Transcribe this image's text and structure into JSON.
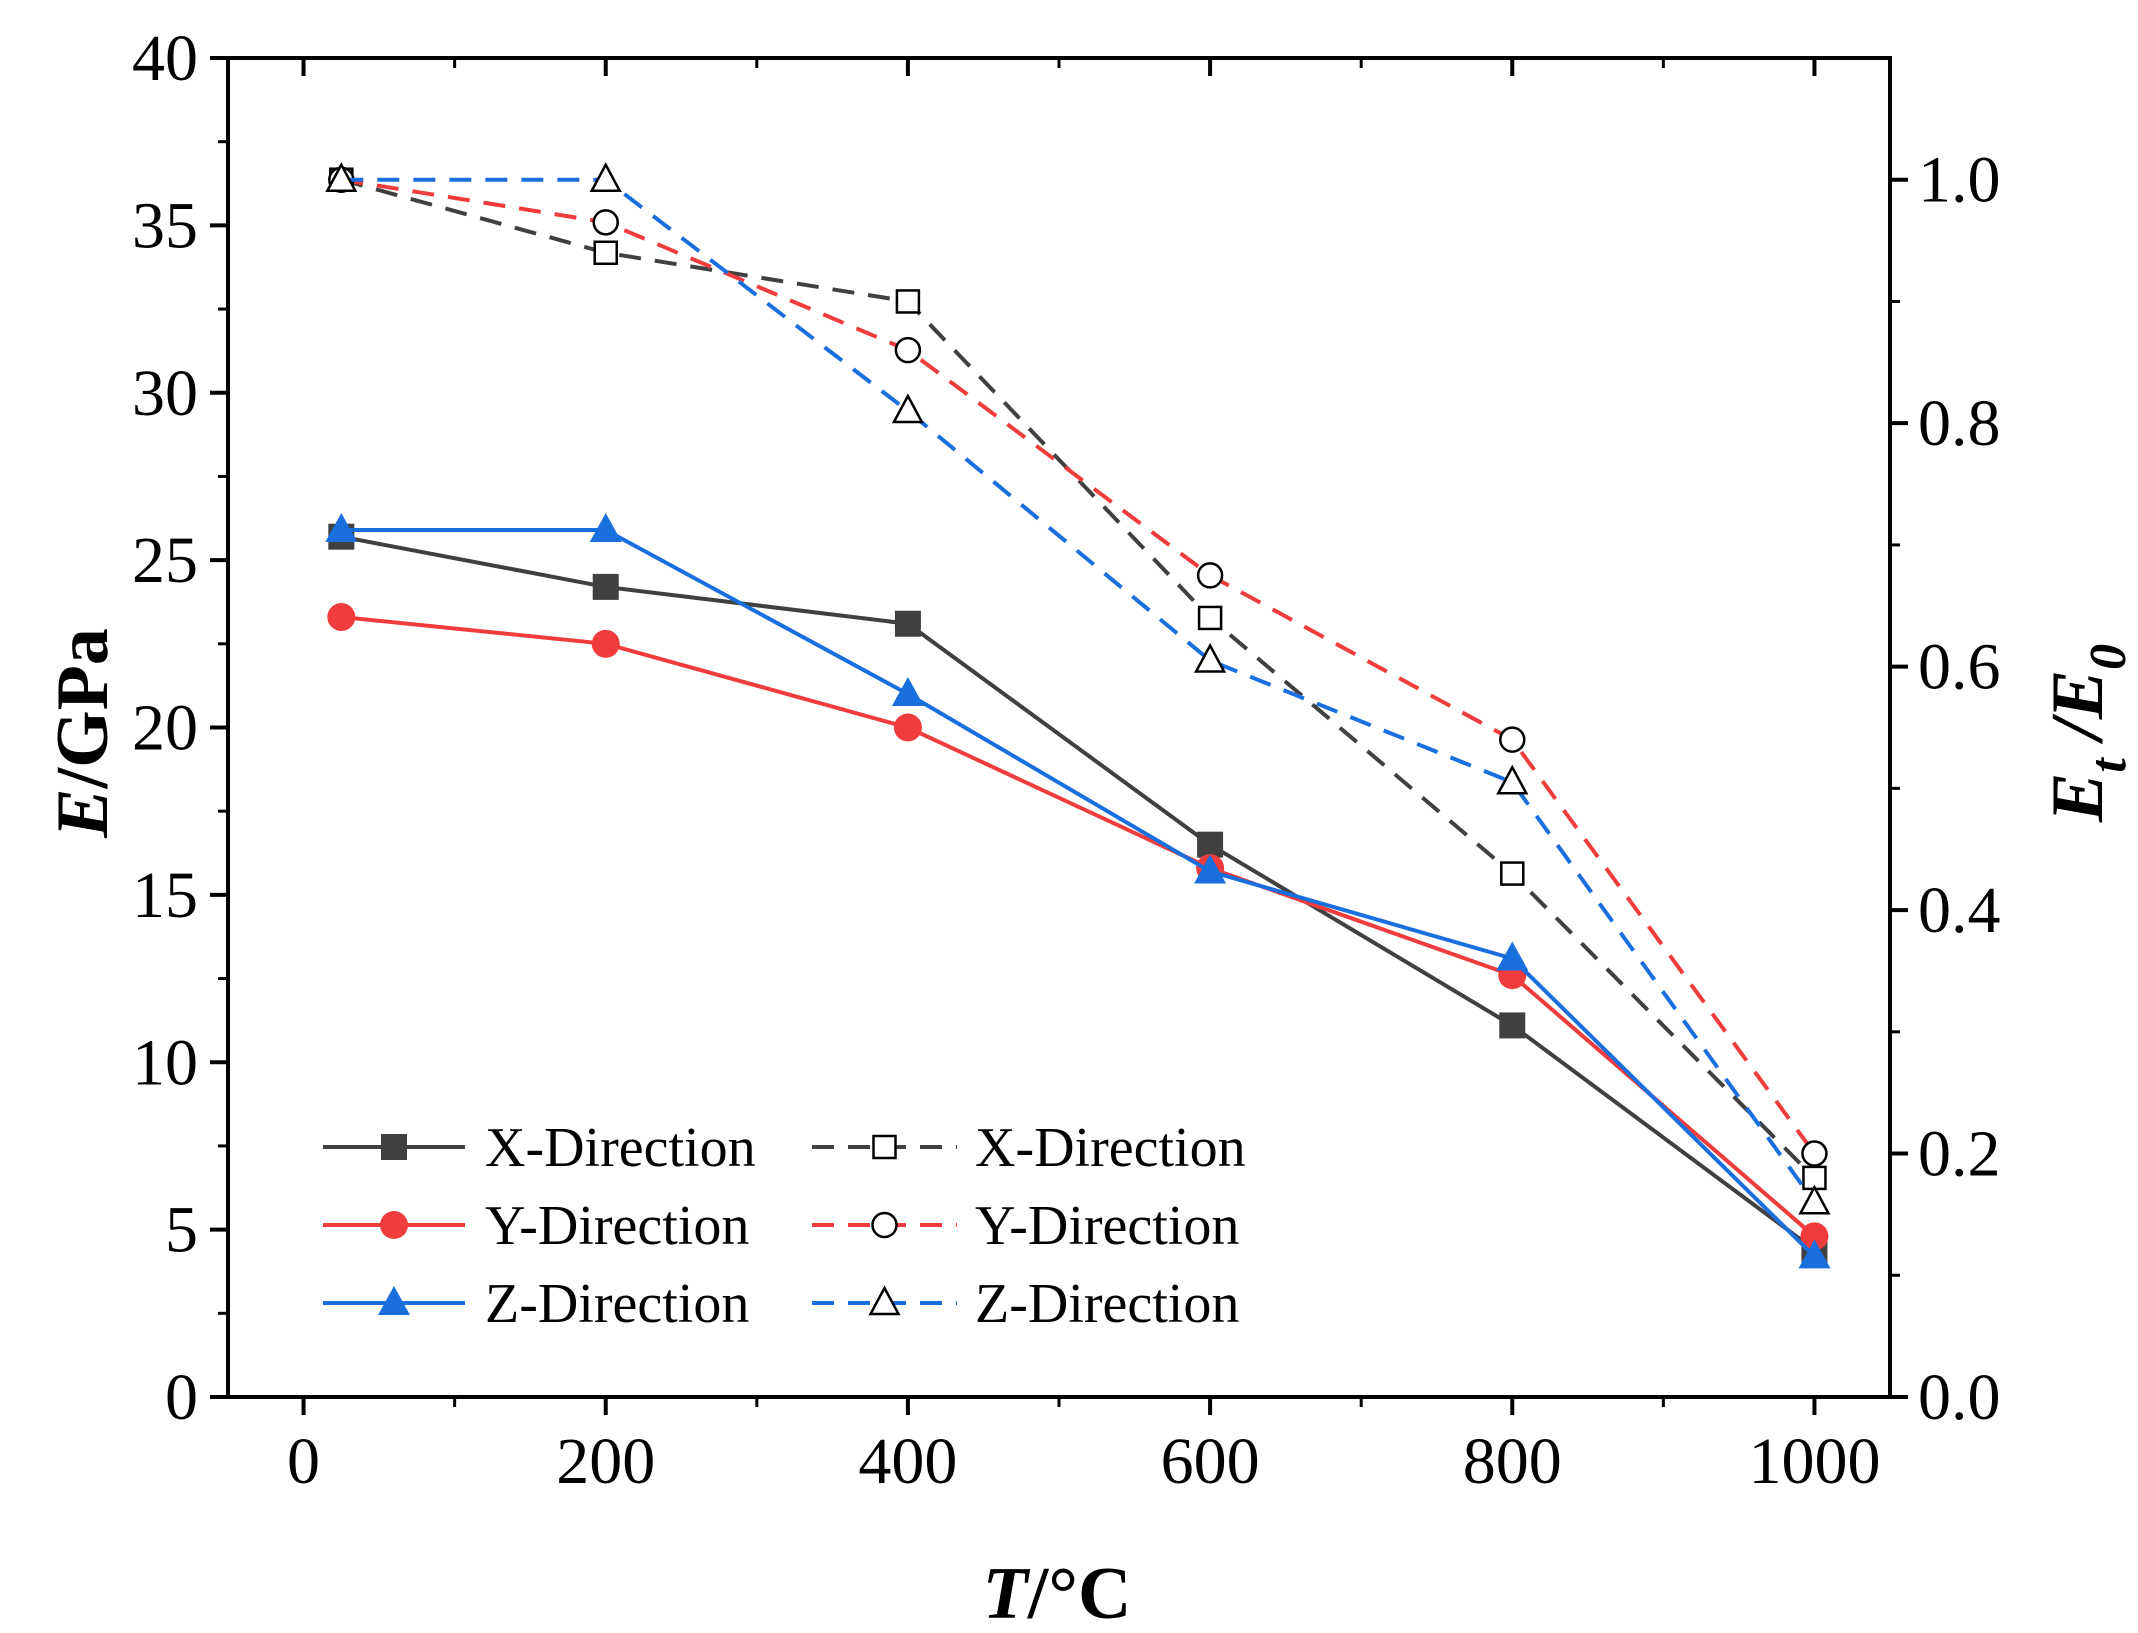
{
  "chart_data": {
    "type": "line",
    "x": [
      25,
      200,
      400,
      600,
      800,
      1000
    ],
    "xlabel": "T/°C",
    "ylabel": "E/GPa",
    "y2label": "Et/E0",
    "xlim": [
      -50,
      1050
    ],
    "ylim": [
      0,
      40
    ],
    "y2lim": [
      0,
      1.1
    ],
    "xticks": [
      "0",
      "200",
      "400",
      "600",
      "800",
      "1000"
    ],
    "yticks": [
      "0",
      "5",
      "10",
      "15",
      "20",
      "25",
      "30",
      "35",
      "40"
    ],
    "y2ticks": [
      "0.0",
      "0.2",
      "0.4",
      "0.6",
      "0.8",
      "1.0"
    ],
    "grid": false,
    "legend_position": "bottom-left",
    "series": [
      {
        "name": "X-Direction",
        "axis": "left",
        "style": "solid",
        "marker": "square",
        "color": "#404040",
        "values": [
          25.7,
          24.2,
          23.1,
          16.5,
          11.1,
          4.4
        ]
      },
      {
        "name": "Y-Direction",
        "axis": "left",
        "style": "solid",
        "marker": "circle",
        "color": "#f03c3c",
        "values": [
          23.3,
          22.5,
          20.0,
          15.8,
          12.6,
          4.8
        ]
      },
      {
        "name": "Z-Direction",
        "axis": "left",
        "style": "solid",
        "marker": "triangle",
        "color": "#1a6fdf",
        "values": [
          25.9,
          25.9,
          21.0,
          15.7,
          13.1,
          4.2
        ]
      },
      {
        "name": "X-Direction",
        "axis": "right",
        "style": "dashed",
        "marker": "open-square",
        "color": "#404040",
        "values": [
          1.0,
          0.94,
          0.9,
          0.64,
          0.43,
          0.18
        ]
      },
      {
        "name": "Y-Direction",
        "axis": "right",
        "style": "dashed",
        "marker": "open-circle",
        "color": "#f03c3c",
        "values": [
          1.0,
          0.965,
          0.86,
          0.675,
          0.54,
          0.2
        ]
      },
      {
        "name": "Z-Direction",
        "axis": "right",
        "style": "dashed",
        "marker": "open-triangle",
        "color": "#1a6fdf",
        "values": [
          1.0,
          1.0,
          0.81,
          0.605,
          0.505,
          0.16
        ]
      }
    ]
  }
}
